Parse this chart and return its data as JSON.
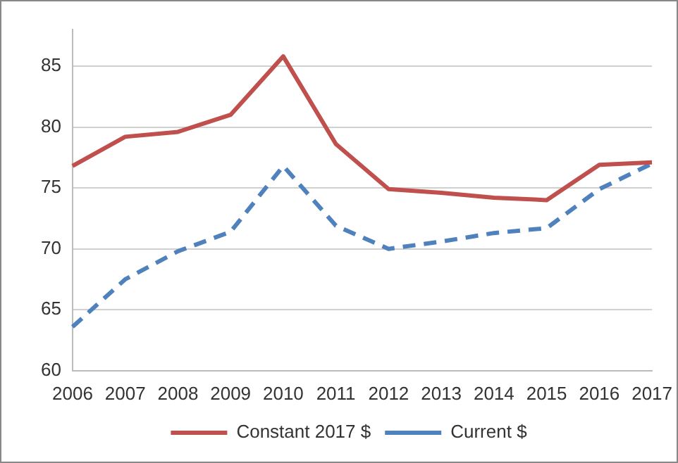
{
  "chart_data": {
    "type": "line",
    "categories": [
      "2006",
      "2007",
      "2008",
      "2009",
      "2010",
      "2011",
      "2012",
      "2013",
      "2014",
      "2015",
      "2016",
      "2017"
    ],
    "series": [
      {
        "name": "Constant 2017 $",
        "color": "#c0504d",
        "line_style": "solid",
        "values": [
          76.8,
          79.2,
          79.6,
          81.0,
          85.8,
          78.6,
          74.9,
          74.6,
          74.2,
          74.0,
          76.9,
          77.1
        ]
      },
      {
        "name": "Current $",
        "color": "#4f81bd",
        "line_style": "dashed",
        "values": [
          63.6,
          67.5,
          69.8,
          71.4,
          76.8,
          71.9,
          70.0,
          70.6,
          71.3,
          71.7,
          74.9,
          77.0
        ]
      }
    ],
    "ylim": [
      60,
      88
    ],
    "yticks": [
      60,
      65,
      70,
      75,
      80,
      85
    ],
    "grid": "y",
    "legend": "bottom",
    "marker": "none"
  }
}
